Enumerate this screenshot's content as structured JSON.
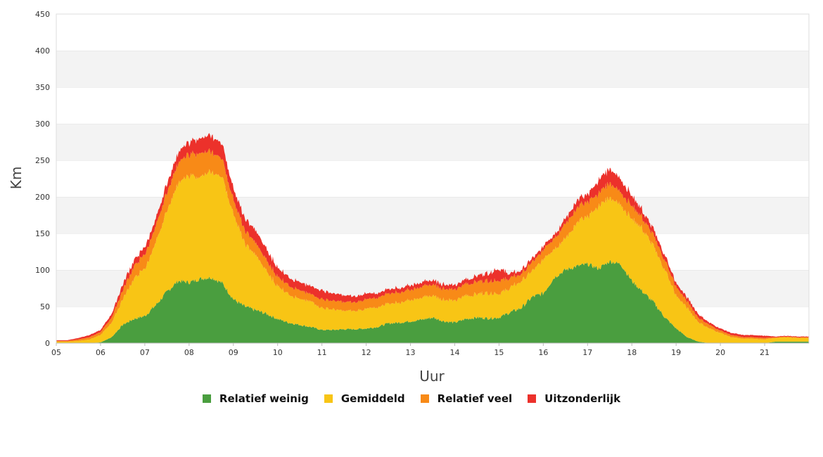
{
  "chart_data": {
    "type": "area",
    "stacked": true,
    "title": "",
    "xlabel": "Uur",
    "ylabel": "Km",
    "ylim": [
      0,
      450
    ],
    "xlim": [
      5,
      22
    ],
    "yticks": [
      0,
      50,
      100,
      150,
      200,
      250,
      300,
      350,
      400,
      450
    ],
    "xtick_labels": [
      "05",
      "06",
      "07",
      "08",
      "09",
      "10",
      "11",
      "12",
      "13",
      "14",
      "15",
      "16",
      "17",
      "18",
      "19",
      "20",
      "21"
    ],
    "grid": "horizontal bands",
    "legend_position": "bottom-center",
    "x": [
      5.0,
      5.25,
      5.5,
      5.75,
      6.0,
      6.25,
      6.5,
      6.75,
      7.0,
      7.25,
      7.5,
      7.75,
      8.0,
      8.25,
      8.5,
      8.75,
      9.0,
      9.25,
      9.5,
      9.75,
      10.0,
      10.25,
      10.5,
      10.75,
      11.0,
      11.25,
      11.5,
      11.75,
      12.0,
      12.25,
      12.5,
      12.75,
      13.0,
      13.25,
      13.5,
      13.75,
      14.0,
      14.25,
      14.5,
      14.75,
      15.0,
      15.25,
      15.5,
      15.75,
      16.0,
      16.25,
      16.5,
      16.75,
      17.0,
      17.25,
      17.5,
      17.75,
      18.0,
      18.25,
      18.5,
      18.75,
      19.0,
      19.25,
      19.5,
      19.75,
      20.0,
      20.25,
      20.5,
      20.75,
      21.0,
      21.25,
      21.5,
      21.75,
      22.0
    ],
    "series": [
      {
        "name": "Relatief weinig",
        "color": "#4a9e3f",
        "values": [
          0,
          0,
          0,
          0,
          1,
          8,
          25,
          33,
          37,
          52,
          70,
          85,
          83,
          88,
          90,
          82,
          60,
          50,
          45,
          40,
          33,
          28,
          25,
          22,
          18,
          18,
          19,
          19,
          20,
          22,
          27,
          28,
          30,
          32,
          35,
          30,
          28,
          33,
          35,
          34,
          35,
          42,
          48,
          63,
          68,
          90,
          100,
          105,
          108,
          102,
          112,
          108,
          85,
          70,
          55,
          35,
          20,
          8,
          2,
          0,
          0,
          0,
          0,
          0,
          0,
          2,
          2,
          2,
          2
        ]
      },
      {
        "name": "Gemiddeld",
        "color": "#f8c515",
        "values": [
          2,
          2,
          3,
          5,
          10,
          20,
          35,
          55,
          65,
          85,
          110,
          135,
          145,
          140,
          145,
          145,
          118,
          85,
          75,
          58,
          45,
          40,
          35,
          35,
          30,
          28,
          25,
          25,
          27,
          27,
          27,
          28,
          30,
          30,
          30,
          30,
          30,
          32,
          32,
          35,
          33,
          33,
          37,
          35,
          47,
          40,
          42,
          60,
          65,
          85,
          88,
          82,
          85,
          85,
          75,
          65,
          45,
          40,
          27,
          20,
          14,
          8,
          6,
          6,
          5,
          5,
          6,
          5,
          5
        ]
      },
      {
        "name": "Relatief veel",
        "color": "#f88a17",
        "values": [
          1,
          1,
          2,
          3,
          4,
          7,
          12,
          17,
          20,
          22,
          25,
          28,
          30,
          33,
          28,
          25,
          20,
          18,
          17,
          15,
          13,
          12,
          12,
          10,
          12,
          12,
          12,
          12,
          13,
          13,
          14,
          14,
          14,
          15,
          15,
          15,
          15,
          16,
          17,
          17,
          18,
          13,
          10,
          12,
          13,
          15,
          20,
          20,
          20,
          18,
          20,
          17,
          18,
          15,
          15,
          13,
          12,
          9,
          6,
          5,
          3,
          3,
          2,
          2,
          2,
          1,
          1,
          1,
          1
        ]
      },
      {
        "name": "Uitzonderlijk",
        "color": "#ec312b",
        "values": [
          1,
          1,
          2,
          3,
          3,
          5,
          8,
          8,
          10,
          10,
          12,
          14,
          17,
          20,
          22,
          20,
          15,
          16,
          17,
          15,
          12,
          11,
          11,
          11,
          12,
          10,
          9,
          8,
          8,
          6,
          6,
          6,
          6,
          6,
          6,
          6,
          6,
          6,
          8,
          10,
          16,
          6,
          5,
          5,
          5,
          5,
          7,
          10,
          10,
          18,
          20,
          18,
          14,
          10,
          8,
          7,
          5,
          5,
          5,
          3,
          3,
          3,
          3,
          3,
          3,
          1,
          1,
          1,
          1
        ]
      }
    ]
  },
  "legend": {
    "items": [
      {
        "label": "Relatief weinig",
        "color": "#4a9e3f"
      },
      {
        "label": "Gemiddeld",
        "color": "#f8c515"
      },
      {
        "label": "Relatief veel",
        "color": "#f88a17"
      },
      {
        "label": "Uitzonderlijk",
        "color": "#ec312b"
      }
    ]
  }
}
